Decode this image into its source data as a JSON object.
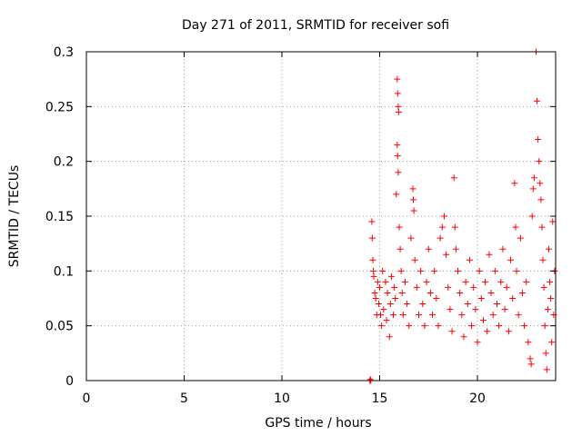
{
  "chart_data": {
    "type": "scatter",
    "title": "Day 271 of 2011, SRMTID for receiver sofi",
    "xlabel": "GPS time / hours",
    "ylabel": "SRMTID / TECUs",
    "xlim": [
      0,
      24
    ],
    "ylim": [
      0,
      0.3
    ],
    "x_ticks": [
      0,
      5,
      10,
      15,
      20
    ],
    "x_tick_labels": [
      "0",
      "5",
      "10",
      "15",
      "20"
    ],
    "y_ticks": [
      0,
      0.05,
      0.1,
      0.15,
      0.2,
      0.25,
      0.3
    ],
    "y_tick_labels": [
      "0",
      "0.05",
      "0.1",
      "0.15",
      "0.2",
      "0.25",
      "0.3"
    ],
    "grid": true,
    "marker": "+",
    "color": "#ff0000",
    "series": [
      {
        "name": "SRMTID",
        "points": [
          [
            14.5,
            0.0
          ],
          [
            14.52,
            0.001
          ],
          [
            14.55,
            0.0
          ],
          [
            14.6,
            0.145
          ],
          [
            14.62,
            0.13
          ],
          [
            14.65,
            0.11
          ],
          [
            14.68,
            0.1
          ],
          [
            14.7,
            0.095
          ],
          [
            14.75,
            0.08
          ],
          [
            14.8,
            0.075
          ],
          [
            14.85,
            0.06
          ],
          [
            14.9,
            0.09
          ],
          [
            14.95,
            0.07
          ],
          [
            15.0,
            0.085
          ],
          [
            15.05,
            0.06
          ],
          [
            15.1,
            0.05
          ],
          [
            15.15,
            0.1
          ],
          [
            15.2,
            0.065
          ],
          [
            15.3,
            0.09
          ],
          [
            15.35,
            0.055
          ],
          [
            15.4,
            0.08
          ],
          [
            15.5,
            0.04
          ],
          [
            15.55,
            0.07
          ],
          [
            15.6,
            0.095
          ],
          [
            15.7,
            0.06
          ],
          [
            15.75,
            0.085
          ],
          [
            15.8,
            0.075
          ],
          [
            15.9,
            0.275
          ],
          [
            15.92,
            0.262
          ],
          [
            15.95,
            0.25
          ],
          [
            15.97,
            0.245
          ],
          [
            15.9,
            0.215
          ],
          [
            15.92,
            0.205
          ],
          [
            15.95,
            0.19
          ],
          [
            15.85,
            0.17
          ],
          [
            16.0,
            0.14
          ],
          [
            16.05,
            0.12
          ],
          [
            16.1,
            0.1
          ],
          [
            16.15,
            0.08
          ],
          [
            16.2,
            0.06
          ],
          [
            16.3,
            0.09
          ],
          [
            16.4,
            0.07
          ],
          [
            16.5,
            0.05
          ],
          [
            16.6,
            0.13
          ],
          [
            16.7,
            0.175
          ],
          [
            16.72,
            0.165
          ],
          [
            16.75,
            0.155
          ],
          [
            16.8,
            0.11
          ],
          [
            16.9,
            0.085
          ],
          [
            17.0,
            0.06
          ],
          [
            17.1,
            0.1
          ],
          [
            17.2,
            0.07
          ],
          [
            17.3,
            0.05
          ],
          [
            17.4,
            0.09
          ],
          [
            17.5,
            0.12
          ],
          [
            17.6,
            0.08
          ],
          [
            17.7,
            0.06
          ],
          [
            17.8,
            0.1
          ],
          [
            17.9,
            0.075
          ],
          [
            18.0,
            0.05
          ],
          [
            18.1,
            0.13
          ],
          [
            18.2,
            0.14
          ],
          [
            18.3,
            0.15
          ],
          [
            18.4,
            0.115
          ],
          [
            18.5,
            0.085
          ],
          [
            18.6,
            0.065
          ],
          [
            18.7,
            0.045
          ],
          [
            18.8,
            0.185
          ],
          [
            18.85,
            0.14
          ],
          [
            18.9,
            0.12
          ],
          [
            19.0,
            0.1
          ],
          [
            19.1,
            0.08
          ],
          [
            19.2,
            0.06
          ],
          [
            19.3,
            0.04
          ],
          [
            19.4,
            0.09
          ],
          [
            19.5,
            0.07
          ],
          [
            19.6,
            0.11
          ],
          [
            19.7,
            0.05
          ],
          [
            19.8,
            0.085
          ],
          [
            19.9,
            0.065
          ],
          [
            20.0,
            0.035
          ],
          [
            20.1,
            0.1
          ],
          [
            20.2,
            0.075
          ],
          [
            20.3,
            0.055
          ],
          [
            20.4,
            0.09
          ],
          [
            20.5,
            0.045
          ],
          [
            20.6,
            0.115
          ],
          [
            20.7,
            0.08
          ],
          [
            20.8,
            0.06
          ],
          [
            20.9,
            0.1
          ],
          [
            21.0,
            0.07
          ],
          [
            21.1,
            0.05
          ],
          [
            21.2,
            0.09
          ],
          [
            21.3,
            0.12
          ],
          [
            21.4,
            0.065
          ],
          [
            21.5,
            0.085
          ],
          [
            21.6,
            0.045
          ],
          [
            21.7,
            0.11
          ],
          [
            21.8,
            0.075
          ],
          [
            21.9,
            0.18
          ],
          [
            21.95,
            0.14
          ],
          [
            22.0,
            0.1
          ],
          [
            22.1,
            0.06
          ],
          [
            22.2,
            0.13
          ],
          [
            22.3,
            0.08
          ],
          [
            22.4,
            0.05
          ],
          [
            22.5,
            0.09
          ],
          [
            22.6,
            0.035
          ],
          [
            22.7,
            0.02
          ],
          [
            22.75,
            0.015
          ],
          [
            22.8,
            0.15
          ],
          [
            22.85,
            0.175
          ],
          [
            22.9,
            0.185
          ],
          [
            23.0,
            0.3
          ],
          [
            23.05,
            0.255
          ],
          [
            23.1,
            0.22
          ],
          [
            23.15,
            0.2
          ],
          [
            23.2,
            0.18
          ],
          [
            23.25,
            0.165
          ],
          [
            23.3,
            0.14
          ],
          [
            23.35,
            0.11
          ],
          [
            23.4,
            0.085
          ],
          [
            23.45,
            0.05
          ],
          [
            23.5,
            0.025
          ],
          [
            23.55,
            0.01
          ],
          [
            23.6,
            0.065
          ],
          [
            23.65,
            0.12
          ],
          [
            23.7,
            0.09
          ],
          [
            23.75,
            0.075
          ],
          [
            23.8,
            0.035
          ],
          [
            23.85,
            0.145
          ],
          [
            23.9,
            0.06
          ],
          [
            23.95,
            0.1
          ]
        ]
      }
    ]
  }
}
